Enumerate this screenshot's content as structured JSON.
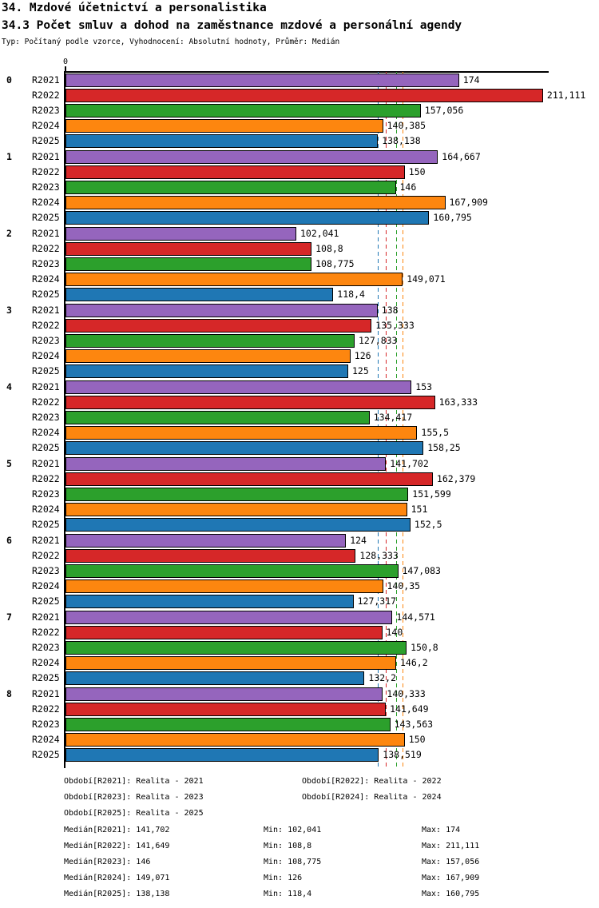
{
  "header": {
    "title": "34. Mzdové účetnictví a personalistika",
    "subtitle": "34.3 Počet smluv a dohod na zaměstnance mzdové a personální agendy",
    "meta": "Typ: Počítaný podle vzorce, Vyhodnocení: Absolutní hodnoty, Průměr: Medián"
  },
  "chart_data": {
    "type": "bar",
    "orientation": "horizontal",
    "title": "34.3 Počet smluv a dohod na zaměstnance mzdové a personální agendy",
    "xlabel": "",
    "ylabel": "",
    "xlim": [
      0,
      213.6
    ],
    "axis_origin_label": "0",
    "grid": false,
    "legend_position": "bottom",
    "series": [
      "R2021",
      "R2022",
      "R2023",
      "R2024",
      "R2025"
    ],
    "series_colors": {
      "R2021": "#9565bd",
      "R2022": "#d62728",
      "R2023": "#2ca02c",
      "R2024": "#fd860f",
      "R2025": "#1f77b4"
    },
    "groups": [
      {
        "label": "0",
        "values": [
          174,
          211.111,
          157.056,
          140.385,
          138.138
        ],
        "display": [
          "174",
          "211,111",
          "157,056",
          "140,385",
          "138,138"
        ]
      },
      {
        "label": "1",
        "values": [
          164.667,
          150,
          146,
          167.909,
          160.795
        ],
        "display": [
          "164,667",
          "150",
          "146",
          "167,909",
          "160,795"
        ]
      },
      {
        "label": "2",
        "values": [
          102.041,
          108.8,
          108.775,
          149.071,
          118.4
        ],
        "display": [
          "102,041",
          "108,8",
          "108,775",
          "149,071",
          "118,4"
        ]
      },
      {
        "label": "3",
        "values": [
          138,
          135.333,
          127.833,
          126,
          125
        ],
        "display": [
          "138",
          "135,333",
          "127,833",
          "126",
          "125"
        ]
      },
      {
        "label": "4",
        "values": [
          153,
          163.333,
          134.417,
          155.5,
          158.25
        ],
        "display": [
          "153",
          "163,333",
          "134,417",
          "155,5",
          "158,25"
        ]
      },
      {
        "label": "5",
        "values": [
          141.702,
          162.379,
          151.599,
          151,
          152.5
        ],
        "display": [
          "141,702",
          "162,379",
          "151,599",
          "151",
          "152,5"
        ]
      },
      {
        "label": "6",
        "values": [
          124,
          128.333,
          147.083,
          140.35,
          127.317
        ],
        "display": [
          "124",
          "128,333",
          "147,083",
          "140,35",
          "127,317"
        ]
      },
      {
        "label": "7",
        "values": [
          144.571,
          140,
          150.8,
          146.2,
          132.2
        ],
        "display": [
          "144,571",
          "140",
          "150,8",
          "146,2",
          "132,2"
        ]
      },
      {
        "label": "8",
        "values": [
          140.333,
          141.649,
          143.563,
          150,
          138.519
        ],
        "display": [
          "140,333",
          "141,649",
          "143,563",
          "150",
          "138,519"
        ]
      }
    ],
    "median_lines": [
      {
        "series": "R2021",
        "value": 141.702,
        "color": "#9565bd"
      },
      {
        "series": "R2022",
        "value": 141.649,
        "color": "#d62728"
      },
      {
        "series": "R2023",
        "value": 146,
        "color": "#2ca02c"
      },
      {
        "series": "R2024",
        "value": 149.071,
        "color": "#fd860f"
      },
      {
        "series": "R2025",
        "value": 138.138,
        "color": "#1f77b4"
      }
    ]
  },
  "legend": {
    "items": [
      "Období[R2021]: Realita - 2021",
      "Období[R2022]: Realita - 2022",
      "Období[R2023]: Realita - 2023",
      "Období[R2024]: Realita - 2024",
      "Období[R2025]: Realita - 2025"
    ]
  },
  "stats": {
    "rows": [
      [
        "Medián[R2021]: 141,702",
        "Min: 102,041",
        "Max: 174"
      ],
      [
        "Medián[R2022]: 141,649",
        "Min: 108,8",
        "Max: 211,111"
      ],
      [
        "Medián[R2023]: 146",
        "Min: 108,775",
        "Max: 157,056"
      ],
      [
        "Medián[R2024]: 149,071",
        "Min: 126",
        "Max: 167,909"
      ],
      [
        "Medián[R2025]: 138,138",
        "Min: 118,4",
        "Max: 160,795"
      ]
    ]
  }
}
